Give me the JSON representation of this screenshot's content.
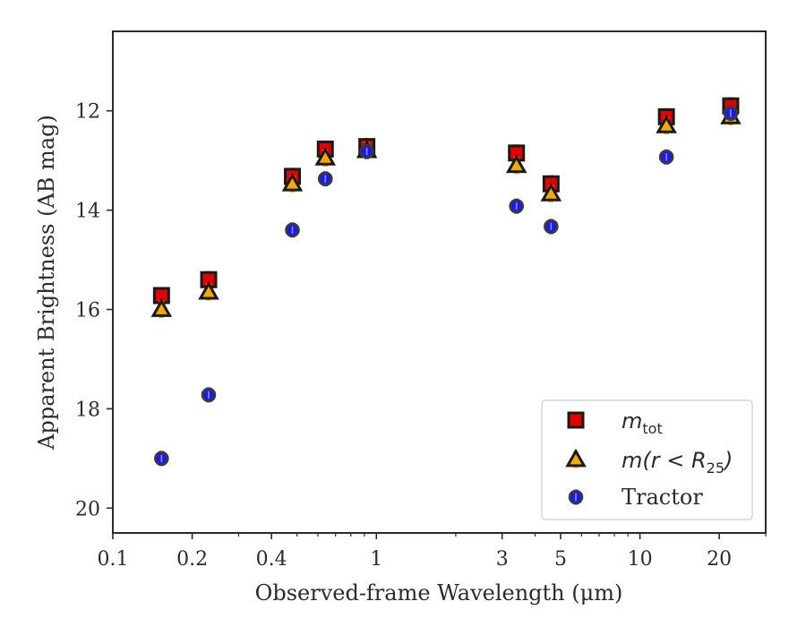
{
  "chart_data": {
    "type": "scatter",
    "xlabel": "Observed-frame Wavelength (μm)",
    "ylabel": "Apparent Brightness (AB mag)",
    "x_scale": "log",
    "xlim": [
      0.1,
      30
    ],
    "ylim": [
      20.5,
      10.4
    ],
    "y_inverted": true,
    "x_ticks": [
      {
        "value": 0.1,
        "label": "0.1"
      },
      {
        "value": 0.2,
        "label": "0.2"
      },
      {
        "value": 0.4,
        "label": "0.4"
      },
      {
        "value": 1,
        "label": "1"
      },
      {
        "value": 3,
        "label": "3"
      },
      {
        "value": 5,
        "label": "5"
      },
      {
        "value": 10,
        "label": "10"
      },
      {
        "value": 20,
        "label": "20"
      }
    ],
    "y_ticks": [
      {
        "value": 12,
        "label": "12"
      },
      {
        "value": 14,
        "label": "14"
      },
      {
        "value": 16,
        "label": "16"
      },
      {
        "value": 18,
        "label": "18"
      },
      {
        "value": 20,
        "label": "20"
      }
    ],
    "grid": false,
    "legend_position": "bottom-right",
    "series": [
      {
        "name": "m_tot",
        "legend_main": "m",
        "legend_sub": "tot",
        "marker": "square",
        "fill": "#e00000",
        "edge": "#1a1a1a",
        "errcolor": "#d40000",
        "points": [
          {
            "x": 0.153,
            "y": 15.72
          },
          {
            "x": 0.231,
            "y": 15.4
          },
          {
            "x": 0.48,
            "y": 13.32
          },
          {
            "x": 0.64,
            "y": 12.77
          },
          {
            "x": 0.92,
            "y": 12.72
          },
          {
            "x": 3.4,
            "y": 12.85
          },
          {
            "x": 4.6,
            "y": 13.47
          },
          {
            "x": 12.6,
            "y": 12.12
          },
          {
            "x": 22.1,
            "y": 11.9
          }
        ]
      },
      {
        "name": "m(r < R_25)",
        "legend_main": "m(r < R",
        "legend_sub": "25",
        "legend_tail": ")",
        "marker": "triangle",
        "fill": "#f2a900",
        "edge": "#1a1a1a",
        "errcolor": "#f2a900",
        "points": [
          {
            "x": 0.153,
            "y": 16.0
          },
          {
            "x": 0.231,
            "y": 15.65
          },
          {
            "x": 0.48,
            "y": 13.47
          },
          {
            "x": 0.64,
            "y": 12.95
          },
          {
            "x": 0.92,
            "y": 12.8
          },
          {
            "x": 3.4,
            "y": 13.1
          },
          {
            "x": 4.6,
            "y": 13.67
          },
          {
            "x": 12.6,
            "y": 12.3
          },
          {
            "x": 22.1,
            "y": 12.12
          }
        ]
      },
      {
        "name": "Tractor",
        "marker": "circle",
        "fill": "#1a1aee",
        "edge": "#3a3a3a",
        "errcolor": "#2a2aff",
        "points": [
          {
            "x": 0.153,
            "y": 19.0
          },
          {
            "x": 0.231,
            "y": 17.72
          },
          {
            "x": 0.48,
            "y": 14.4
          },
          {
            "x": 0.64,
            "y": 13.37
          },
          {
            "x": 0.92,
            "y": 12.82
          },
          {
            "x": 3.4,
            "y": 13.92
          },
          {
            "x": 4.6,
            "y": 14.33
          },
          {
            "x": 12.6,
            "y": 12.93
          },
          {
            "x": 22.1,
            "y": 12.05
          }
        ]
      }
    ]
  }
}
